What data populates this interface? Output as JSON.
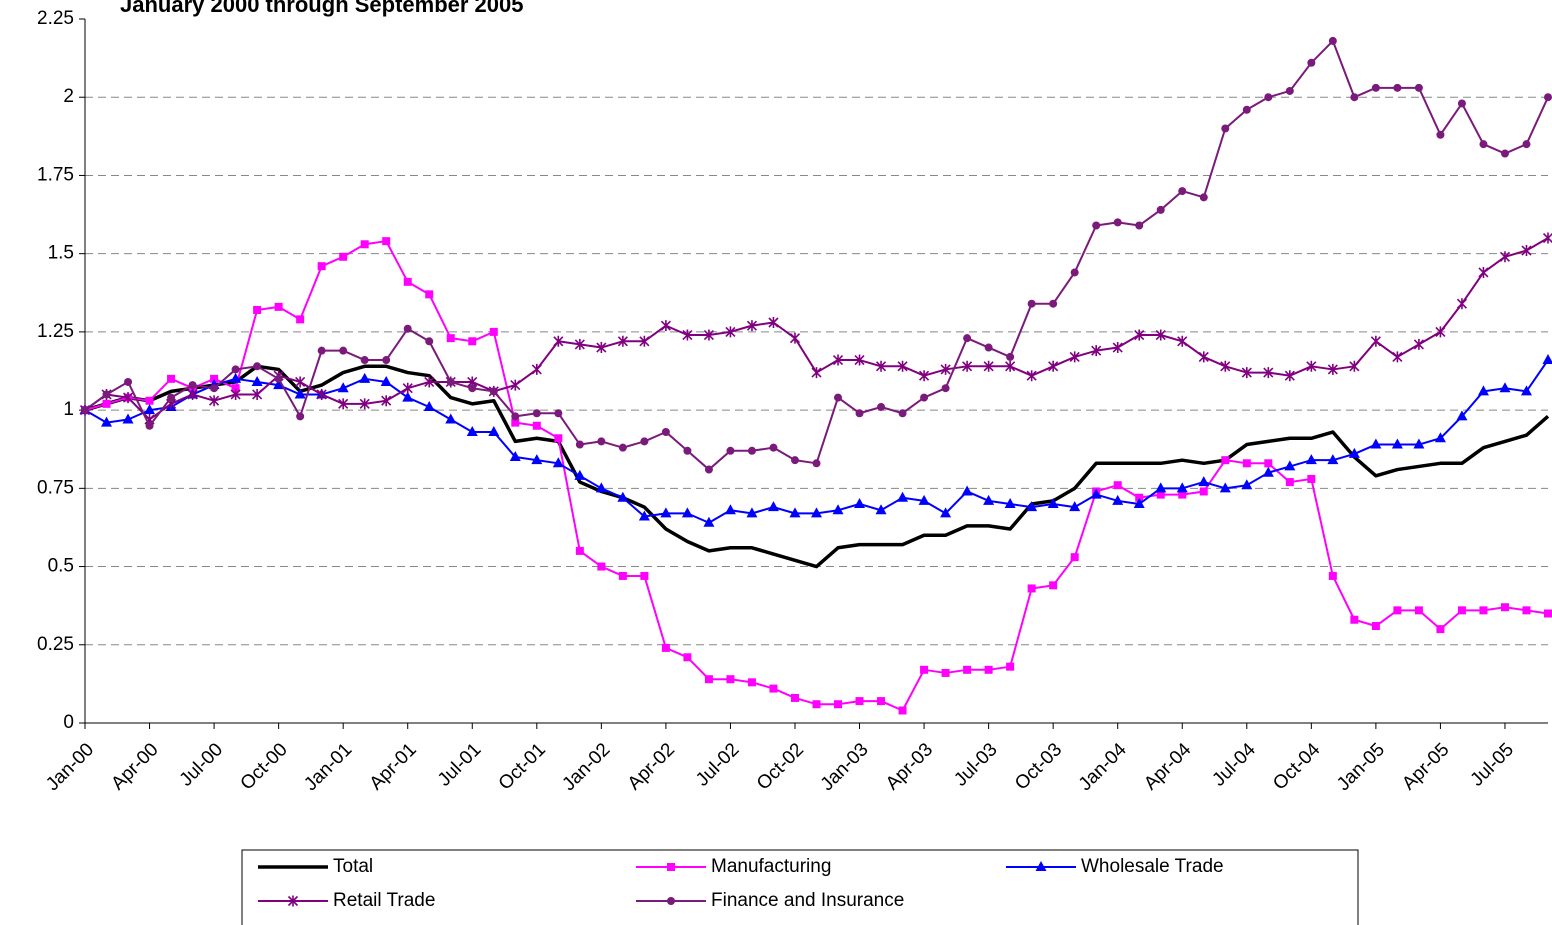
{
  "chart_data": {
    "type": "line",
    "title": "January 2000 through September 2005",
    "categories": [
      "Jan-00",
      null,
      null,
      "Apr-00",
      null,
      null,
      "Jul-00",
      null,
      null,
      "Oct-00",
      null,
      null,
      "Jan-01",
      null,
      null,
      "Apr-01",
      null,
      null,
      "Jul-01",
      null,
      null,
      "Oct-01",
      null,
      null,
      "Jan-02",
      null,
      null,
      "Apr-02",
      null,
      null,
      "Jul-02",
      null,
      null,
      "Oct-02",
      null,
      null,
      "Jan-03",
      null,
      null,
      "Apr-03",
      null,
      null,
      "Jul-03",
      null,
      null,
      "Oct-03",
      null,
      null,
      "Jan-04",
      null,
      null,
      "Apr-04",
      null,
      null,
      "Jul-04",
      null,
      null,
      "Oct-04",
      null,
      null,
      "Jan-05",
      null,
      null,
      "Apr-05",
      null,
      null,
      "Jul-05",
      null,
      null
    ],
    "ylim": [
      0,
      2.25
    ],
    "yticks": [
      0,
      0.25,
      0.5,
      0.75,
      1,
      1.25,
      1.5,
      1.75,
      2,
      2.25
    ],
    "grid": true,
    "legend": "bottom",
    "series": [
      {
        "name": "Total",
        "color": "#000000",
        "marker": "none",
        "values": [
          1.0,
          1.02,
          1.04,
          1.03,
          1.06,
          1.07,
          1.08,
          1.09,
          1.14,
          1.13,
          1.06,
          1.08,
          1.12,
          1.14,
          1.14,
          1.12,
          1.11,
          1.04,
          1.02,
          1.03,
          0.9,
          0.91,
          0.9,
          0.77,
          0.74,
          0.72,
          0.69,
          0.62,
          0.58,
          0.55,
          0.56,
          0.56,
          0.54,
          0.52,
          0.5,
          0.56,
          0.57,
          0.57,
          0.57,
          0.6,
          0.6,
          0.63,
          0.63,
          0.62,
          0.7,
          0.71,
          0.75,
          0.83,
          0.83,
          0.83,
          0.83,
          0.84,
          0.83,
          0.84,
          0.89,
          0.9,
          0.91,
          0.91,
          0.93,
          0.85,
          0.79,
          0.81,
          0.82,
          0.83,
          0.83,
          0.88,
          0.9,
          0.92,
          0.98
        ]
      },
      {
        "name": "Manufacturing",
        "color": "#ff00ff",
        "marker": "square",
        "values": [
          1.0,
          1.02,
          1.04,
          1.03,
          1.1,
          1.07,
          1.1,
          1.07,
          1.32,
          1.33,
          1.29,
          1.46,
          1.49,
          1.53,
          1.54,
          1.41,
          1.37,
          1.23,
          1.22,
          1.25,
          0.96,
          0.95,
          0.91,
          0.55,
          0.5,
          0.47,
          0.47,
          0.24,
          0.21,
          0.14,
          0.14,
          0.13,
          0.11,
          0.08,
          0.06,
          0.06,
          0.07,
          0.07,
          0.04,
          0.17,
          0.16,
          0.17,
          0.17,
          0.18,
          0.43,
          0.44,
          0.53,
          0.74,
          0.76,
          0.72,
          0.73,
          0.73,
          0.74,
          0.84,
          0.83,
          0.83,
          0.77,
          0.78,
          0.47,
          0.33,
          0.31,
          0.36,
          0.36,
          0.3,
          0.36,
          0.36,
          0.37,
          0.36,
          0.35
        ]
      },
      {
        "name": "Wholesale Trade",
        "color": "#0000ff",
        "marker": "triangle",
        "values": [
          1.0,
          0.96,
          0.97,
          1.0,
          1.01,
          1.05,
          1.08,
          1.1,
          1.09,
          1.08,
          1.05,
          1.05,
          1.07,
          1.1,
          1.09,
          1.04,
          1.01,
          0.97,
          0.93,
          0.93,
          0.85,
          0.84,
          0.83,
          0.79,
          0.75,
          0.72,
          0.66,
          0.67,
          0.67,
          0.64,
          0.68,
          0.67,
          0.69,
          0.67,
          0.67,
          0.68,
          0.7,
          0.68,
          0.72,
          0.71,
          0.67,
          0.74,
          0.71,
          0.7,
          0.69,
          0.7,
          0.69,
          0.73,
          0.71,
          0.7,
          0.75,
          0.75,
          0.77,
          0.75,
          0.76,
          0.8,
          0.82,
          0.84,
          0.84,
          0.86,
          0.89,
          0.89,
          0.89,
          0.91,
          0.98,
          1.06,
          1.07,
          1.06,
          1.16
        ]
      },
      {
        "name": "Retail Trade",
        "color": "#800080",
        "marker": "star",
        "values": [
          1.0,
          1.05,
          1.04,
          0.97,
          1.02,
          1.05,
          1.03,
          1.05,
          1.05,
          1.11,
          1.09,
          1.05,
          1.02,
          1.02,
          1.03,
          1.07,
          1.09,
          1.09,
          1.09,
          1.06,
          1.08,
          1.13,
          1.22,
          1.21,
          1.2,
          1.22,
          1.22,
          1.27,
          1.24,
          1.24,
          1.25,
          1.27,
          1.28,
          1.23,
          1.12,
          1.16,
          1.16,
          1.14,
          1.14,
          1.11,
          1.13,
          1.14,
          1.14,
          1.14,
          1.11,
          1.14,
          1.17,
          1.19,
          1.2,
          1.24,
          1.24,
          1.22,
          1.17,
          1.14,
          1.12,
          1.12,
          1.11,
          1.14,
          1.13,
          1.14,
          1.22,
          1.17,
          1.21,
          1.25,
          1.34,
          1.44,
          1.49,
          1.51,
          1.55
        ]
      },
      {
        "name": "Finance and Insurance",
        "color": "#7a1a7a",
        "marker": "circle",
        "values": [
          1.0,
          1.05,
          1.09,
          0.95,
          1.04,
          1.08,
          1.07,
          1.13,
          1.14,
          1.1,
          0.98,
          1.19,
          1.19,
          1.16,
          1.16,
          1.26,
          1.22,
          1.09,
          1.07,
          1.06,
          0.98,
          0.99,
          0.99,
          0.89,
          0.9,
          0.88,
          0.9,
          0.93,
          0.87,
          0.81,
          0.87,
          0.87,
          0.88,
          0.84,
          0.83,
          1.04,
          0.99,
          1.01,
          0.99,
          1.04,
          1.07,
          1.23,
          1.2,
          1.17,
          1.34,
          1.34,
          1.44,
          1.59,
          1.6,
          1.59,
          1.64,
          1.7,
          1.68,
          1.9,
          1.96,
          2.0,
          2.02,
          2.11,
          2.18,
          2.0,
          2.03,
          2.03,
          2.03,
          1.88,
          1.98,
          1.85,
          1.82,
          1.85,
          2.0
        ]
      }
    ]
  }
}
